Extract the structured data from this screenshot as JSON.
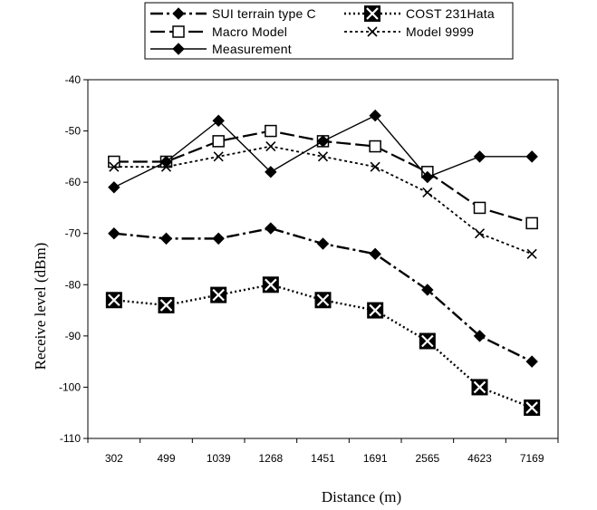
{
  "chart_data": {
    "type": "line",
    "title": "",
    "xlabel": "Distance (m)",
    "ylabel": "Receive level (dBm)",
    "categories": [
      "302",
      "499",
      "1039",
      "1268",
      "1451",
      "1691",
      "2565",
      "4623",
      "7169"
    ],
    "ylim": [
      -110,
      -40
    ],
    "yticks": [
      -110,
      -100,
      -90,
      -80,
      -70,
      -60,
      -50,
      -40
    ],
    "grid": false,
    "legend_position": "top",
    "series": [
      {
        "name": "SUI terrain type C",
        "values": [
          -70,
          -71,
          -71,
          -69,
          -72,
          -74,
          -81,
          -90,
          -95
        ],
        "marker": "diamond",
        "line": "dash-dot"
      },
      {
        "name": "COST 231Hata",
        "values": [
          -83,
          -84,
          -82,
          -80,
          -83,
          -85,
          -91,
          -100,
          -104
        ],
        "marker": "x-box",
        "line": "dotted"
      },
      {
        "name": "Macro Model",
        "values": [
          -56,
          -56,
          -52,
          -50,
          -52,
          -53,
          -58,
          -65,
          -68
        ],
        "marker": "square",
        "line": "long-dash"
      },
      {
        "name": "Model 9999",
        "values": [
          -57,
          -57,
          -55,
          -53,
          -55,
          -57,
          -62,
          -70,
          -74
        ],
        "marker": "x",
        "line": "short-dash"
      },
      {
        "name": "Measurement",
        "values": [
          -61,
          -56,
          -48,
          -58,
          -52,
          -47,
          -59,
          -55,
          -55
        ],
        "marker": "diamond",
        "line": "solid"
      }
    ]
  },
  "legend": {
    "labels": [
      "SUI terrain type C",
      "COST 231Hata",
      "Macro Model",
      "Model 9999",
      "Measurement"
    ]
  }
}
